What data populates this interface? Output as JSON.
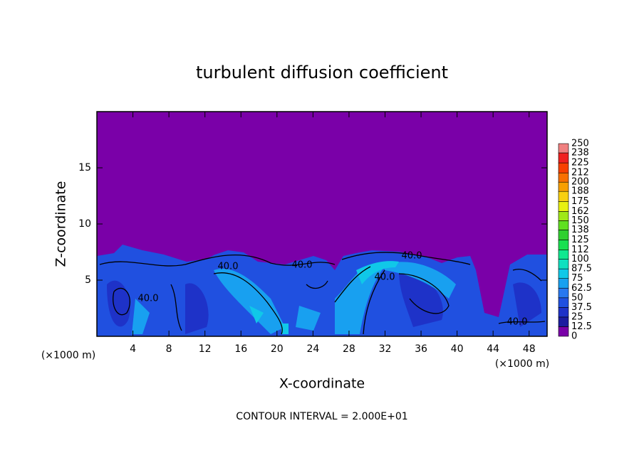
{
  "chart_data": {
    "type": "contour",
    "title": "turbulent diffusion coefficient",
    "x_label": "X-coordinate",
    "y_label": "Z-coordinate",
    "x_unit": "(×1000 m)",
    "footer": "CONTOUR INTERVAL = 2.000E+01",
    "contour_label": {
      "value": 40,
      "label": "40.0"
    },
    "xlim": [
      0,
      50
    ],
    "xticks": [
      4,
      8,
      12,
      16,
      20,
      24,
      28,
      32,
      36,
      40,
      44,
      48
    ],
    "ylim": [
      0,
      20
    ],
    "yticks": [
      5,
      10,
      15
    ],
    "colorbar": {
      "levels": [
        0,
        12.5,
        25,
        37.5,
        50,
        62.5,
        75,
        87.5,
        100,
        112,
        125,
        138,
        150,
        162,
        175,
        188,
        200,
        212,
        225,
        238,
        250
      ],
      "colors": [
        "#7a00a8",
        "#1c1ca0",
        "#1e32c8",
        "#2050e0",
        "#2878f0",
        "#18a0f0",
        "#10c8e8",
        "#10e0c0",
        "#10e890",
        "#18e050",
        "#30d030",
        "#60e020",
        "#a0e818",
        "#e8f010",
        "#f8d010",
        "#f8a000",
        "#f87000",
        "#f84000",
        "#f02020",
        "#f08080"
      ]
    }
  }
}
